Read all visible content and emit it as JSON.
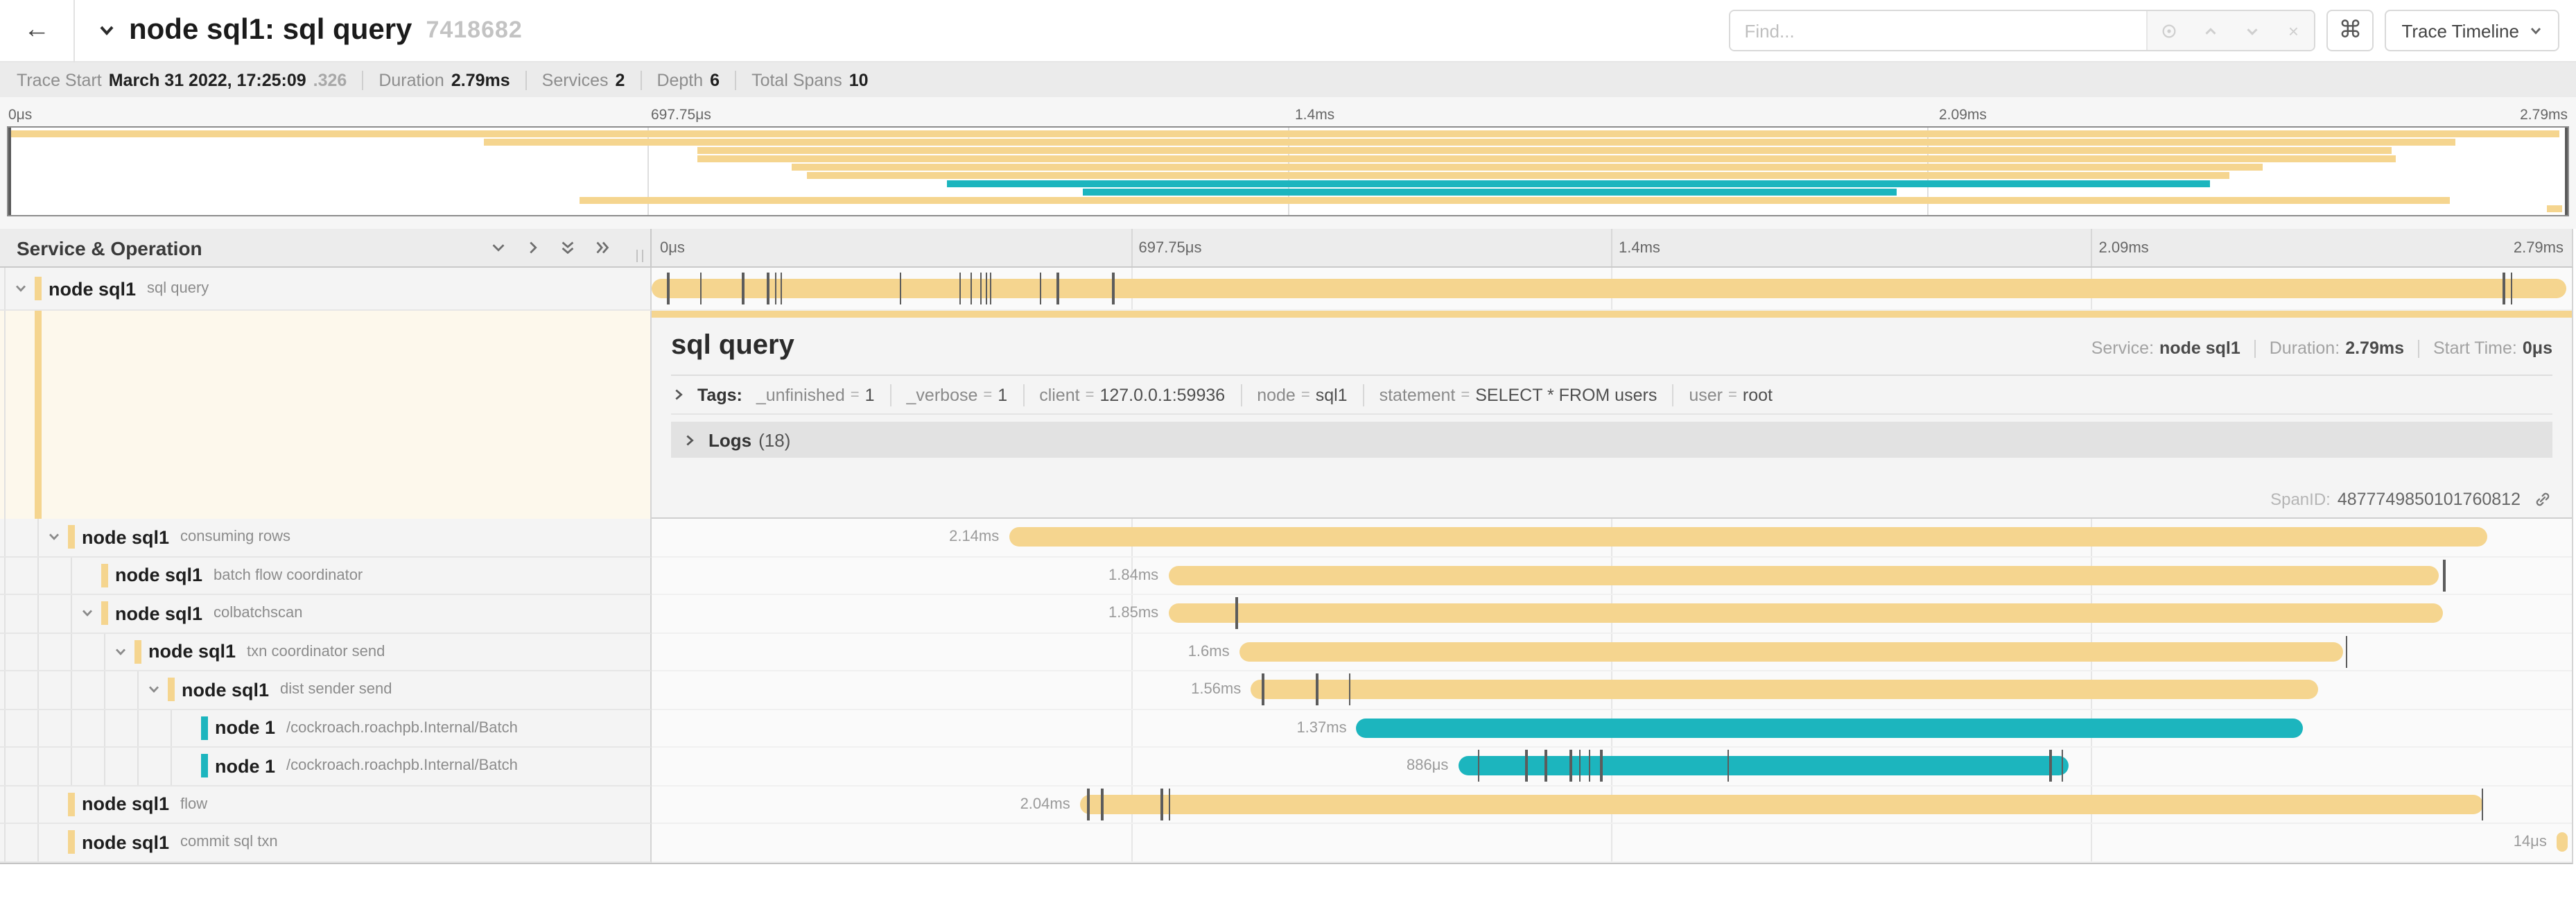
{
  "colors": {
    "tan": "#f5d58f",
    "teal": "#1cb5be",
    "selected_bg": "#fdf8ec"
  },
  "header": {
    "title": "node sql1: sql query",
    "trace_id_short": "7418682",
    "find_placeholder": "Find...",
    "shortcut_button": "⌘",
    "view_select_label": "Trace Timeline"
  },
  "trace_info": {
    "items": [
      {
        "label": "Trace Start",
        "value": "March 31 2022, 17:25:09",
        "suffix": ".326"
      },
      {
        "label": "Duration",
        "value": "2.79ms",
        "suffix": ""
      },
      {
        "label": "Services",
        "value": "2",
        "suffix": ""
      },
      {
        "label": "Depth",
        "value": "6",
        "suffix": ""
      },
      {
        "label": "Total Spans",
        "value": "10",
        "suffix": ""
      }
    ]
  },
  "ruler": {
    "ticks": [
      {
        "label": "0μs",
        "pct": 0
      },
      {
        "label": "697.75μs",
        "pct": 25
      },
      {
        "label": "1.4ms",
        "pct": 50
      },
      {
        "label": "2.09ms",
        "pct": 75
      },
      {
        "label": "2.79ms",
        "pct": 100
      }
    ]
  },
  "timeline": {
    "left_header": "Service & Operation"
  },
  "spans": [
    {
      "service": "node sql1",
      "operation": "sql query",
      "depth": 0,
      "has_children": true,
      "color": "tan",
      "duration_label": "",
      "start_pct": 0,
      "end_pct": 99.7,
      "selected": true,
      "log_ticks_pct": [
        0.8,
        2.5,
        4.7,
        6.0,
        6.4,
        6.7,
        12.9,
        16.0,
        16.6,
        17.1,
        17.4,
        17.6,
        20.2,
        21.1,
        24.0,
        96.4,
        96.8
      ]
    },
    {
      "service": "node sql1",
      "operation": "consuming rows",
      "depth": 1,
      "has_children": true,
      "color": "tan",
      "duration_label": "2.14ms",
      "start_pct": 18.6,
      "end_pct": 95.6,
      "selected": false,
      "log_ticks_pct": []
    },
    {
      "service": "node sql1",
      "operation": "batch flow coordinator",
      "depth": 2,
      "has_children": false,
      "color": "tan",
      "duration_label": "1.84ms",
      "start_pct": 26.9,
      "end_pct": 93.1,
      "selected": false,
      "log_ticks_pct": [
        93.3
      ]
    },
    {
      "service": "node sql1",
      "operation": "colbatchscan",
      "depth": 2,
      "has_children": true,
      "color": "tan",
      "duration_label": "1.85ms",
      "start_pct": 26.9,
      "end_pct": 93.3,
      "selected": false,
      "log_ticks_pct": [
        30.4
      ]
    },
    {
      "service": "node sql1",
      "operation": "txn coordinator send",
      "depth": 3,
      "has_children": true,
      "color": "tan",
      "duration_label": "1.6ms",
      "start_pct": 30.6,
      "end_pct": 88.1,
      "selected": false,
      "log_ticks_pct": [
        88.2
      ]
    },
    {
      "service": "node sql1",
      "operation": "dist sender send",
      "depth": 4,
      "has_children": true,
      "color": "tan",
      "duration_label": "1.56ms",
      "start_pct": 31.2,
      "end_pct": 86.8,
      "selected": false,
      "log_ticks_pct": [
        31.8,
        34.6,
        36.3
      ]
    },
    {
      "service": "node 1",
      "operation": "/cockroach.roachpb.Internal/Batch",
      "depth": 5,
      "has_children": false,
      "color": "teal",
      "duration_label": "1.37ms",
      "start_pct": 36.7,
      "end_pct": 86.0,
      "selected": false,
      "log_ticks_pct": []
    },
    {
      "service": "node 1",
      "operation": "/cockroach.roachpb.Internal/Batch",
      "depth": 5,
      "has_children": false,
      "color": "teal",
      "duration_label": "886μs",
      "start_pct": 42.0,
      "end_pct": 73.8,
      "selected": false,
      "log_ticks_pct": [
        43.0,
        45.5,
        46.5,
        47.8,
        48.3,
        48.8,
        49.4,
        56.0,
        72.8,
        73.4
      ]
    },
    {
      "service": "node sql1",
      "operation": "flow",
      "depth": 1,
      "has_children": false,
      "color": "tan",
      "duration_label": "2.04ms",
      "start_pct": 22.3,
      "end_pct": 95.4,
      "selected": false,
      "log_ticks_pct": [
        22.7,
        23.4,
        26.5,
        26.9,
        95.3
      ]
    },
    {
      "service": "node sql1",
      "operation": "commit sql txn",
      "depth": 1,
      "has_children": false,
      "color": "tan",
      "duration_label": "14μs",
      "start_pct": 99.2,
      "end_pct": 99.8,
      "selected": false,
      "log_ticks_pct": []
    }
  ],
  "detail": {
    "title": "sql query",
    "service_label": "Service:",
    "service": "node sql1",
    "duration_label": "Duration:",
    "duration": "2.79ms",
    "start_time_label": "Start Time:",
    "start_time": "0μs",
    "tags_label": "Tags:",
    "tags": [
      {
        "key": "_unfinished",
        "value": "1"
      },
      {
        "key": "_verbose",
        "value": "1"
      },
      {
        "key": "client",
        "value": "127.0.0.1:59936"
      },
      {
        "key": "node",
        "value": "sql1"
      },
      {
        "key": "statement",
        "value": "SELECT * FROM users"
      },
      {
        "key": "user",
        "value": "root"
      }
    ],
    "logs_label": "Logs",
    "logs_count": "(18)",
    "span_id_label": "SpanID:",
    "span_id": "4877749850101760812"
  }
}
